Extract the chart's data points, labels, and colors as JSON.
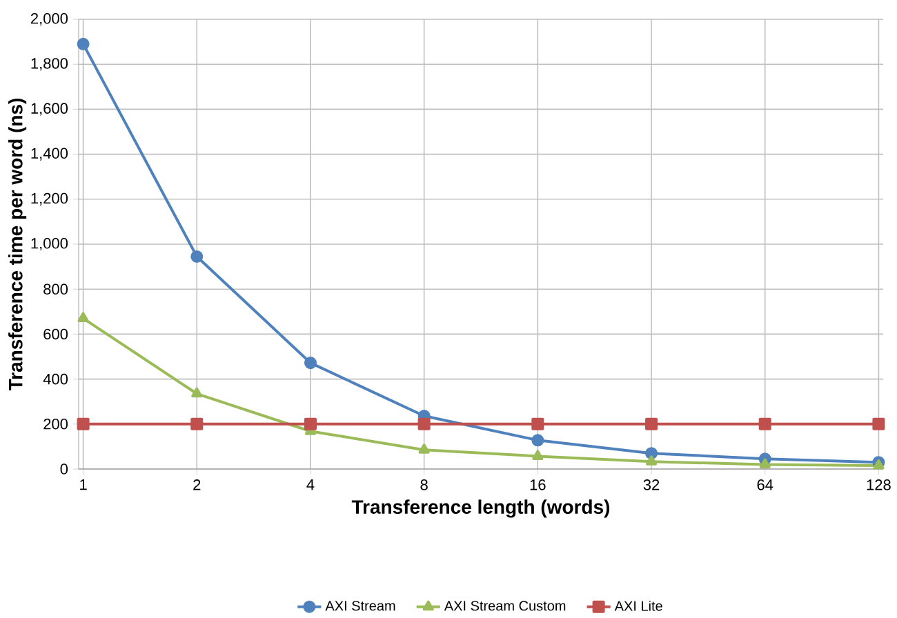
{
  "chart_data": {
    "type": "line",
    "xlabel": "Transference length (words)",
    "ylabel": "Transference time per word (ns)",
    "categories": [
      "1",
      "2",
      "4",
      "8",
      "16",
      "32",
      "64",
      "128"
    ],
    "series": [
      {
        "name": "AXI Stream",
        "color": "#4f81bd",
        "marker": "circle",
        "values": [
          1890,
          945,
          472,
          236,
          128,
          70,
          45,
          30
        ]
      },
      {
        "name": "AXI Stream Custom",
        "color": "#9bbb59",
        "marker": "triangle",
        "values": [
          670,
          335,
          168,
          85,
          57,
          33,
          20,
          15
        ]
      },
      {
        "name": "AXI Lite",
        "color": "#c0504d",
        "marker": "square",
        "values": [
          200,
          200,
          200,
          200,
          200,
          200,
          200,
          200
        ]
      }
    ],
    "ylim": [
      0,
      2000
    ],
    "yticks": [
      {
        "value": 0,
        "label": "0"
      },
      {
        "value": 200,
        "label": "200"
      },
      {
        "value": 400,
        "label": "400"
      },
      {
        "value": 600,
        "label": "600"
      },
      {
        "value": 800,
        "label": "800"
      },
      {
        "value": 1000,
        "label": "1,000"
      },
      {
        "value": 1200,
        "label": "1,200"
      },
      {
        "value": 1400,
        "label": "1,400"
      },
      {
        "value": 1600,
        "label": "1,600"
      },
      {
        "value": 1800,
        "label": "1,800"
      },
      {
        "value": 2000,
        "label": "2,000"
      }
    ],
    "grid": true,
    "legend": "bottom",
    "line_style": "solid"
  }
}
